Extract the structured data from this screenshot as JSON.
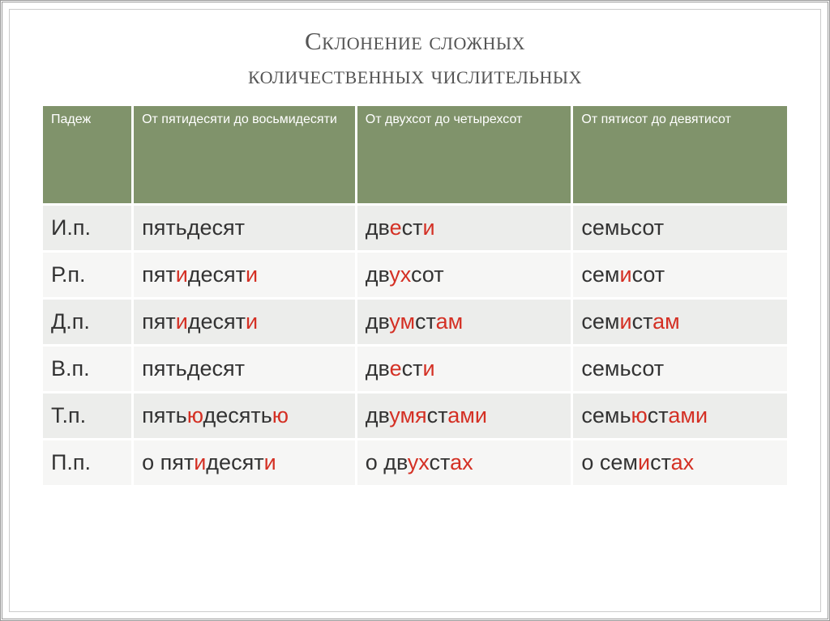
{
  "title_line1": "Склонение сложных",
  "title_line2": "количественных числительных",
  "headers": {
    "case": "Падеж",
    "col1": "От пятидесяти до восьмидесяти",
    "col2": "От двухсот до четырехсот",
    "col3": "От пятисот до девятисот"
  },
  "rows": [
    {
      "case": "И.п.",
      "c1": [
        {
          "t": "пятьдесят",
          "h": 0
        }
      ],
      "c2": [
        {
          "t": "дв",
          "h": 0
        },
        {
          "t": "е",
          "h": 1
        },
        {
          "t": "ст",
          "h": 0
        },
        {
          "t": "и",
          "h": 1
        }
      ],
      "c3": [
        {
          "t": "семьсот",
          "h": 0
        }
      ]
    },
    {
      "case": "Р.п.",
      "c1": [
        {
          "t": "пят",
          "h": 0
        },
        {
          "t": "и",
          "h": 1
        },
        {
          "t": "десят",
          "h": 0
        },
        {
          "t": "и",
          "h": 1
        }
      ],
      "c2": [
        {
          "t": "дв",
          "h": 0
        },
        {
          "t": "ух",
          "h": 1
        },
        {
          "t": "сот",
          "h": 0
        }
      ],
      "c3": [
        {
          "t": "сем",
          "h": 0
        },
        {
          "t": "и",
          "h": 1
        },
        {
          "t": "сот",
          "h": 0
        }
      ]
    },
    {
      "case": "Д.п.",
      "c1": [
        {
          "t": "пят",
          "h": 0
        },
        {
          "t": "и",
          "h": 1
        },
        {
          "t": "десят",
          "h": 0
        },
        {
          "t": "и",
          "h": 1
        }
      ],
      "c2": [
        {
          "t": "дв",
          "h": 0
        },
        {
          "t": "ум",
          "h": 1
        },
        {
          "t": "ст",
          "h": 0
        },
        {
          "t": "ам",
          "h": 1
        }
      ],
      "c3": [
        {
          "t": "сем",
          "h": 0
        },
        {
          "t": "и",
          "h": 1
        },
        {
          "t": "ст",
          "h": 0
        },
        {
          "t": "ам",
          "h": 1
        }
      ]
    },
    {
      "case": "В.п.",
      "c1": [
        {
          "t": "пятьдесят",
          "h": 0
        }
      ],
      "c2": [
        {
          "t": "дв",
          "h": 0
        },
        {
          "t": "е",
          "h": 1
        },
        {
          "t": "ст",
          "h": 0
        },
        {
          "t": "и",
          "h": 1
        }
      ],
      "c3": [
        {
          "t": "семьсот",
          "h": 0
        }
      ]
    },
    {
      "case": "Т.п.",
      "c1": [
        {
          "t": "пять",
          "h": 0
        },
        {
          "t": "ю",
          "h": 1
        },
        {
          "t": "десять",
          "h": 0
        },
        {
          "t": "ю",
          "h": 1
        }
      ],
      "c2": [
        {
          "t": "дв",
          "h": 0
        },
        {
          "t": "умя",
          "h": 1
        },
        {
          "t": "ст",
          "h": 0
        },
        {
          "t": "ами",
          "h": 1
        }
      ],
      "c3": [
        {
          "t": "семь",
          "h": 0
        },
        {
          "t": "ю",
          "h": 1
        },
        {
          "t": "ст",
          "h": 0
        },
        {
          "t": "ами",
          "h": 1
        }
      ]
    },
    {
      "case": "П.п.",
      "c1": [
        {
          "t": "о пят",
          "h": 0
        },
        {
          "t": "и",
          "h": 1
        },
        {
          "t": "десят",
          "h": 0
        },
        {
          "t": "и",
          "h": 1
        }
      ],
      "c2": [
        {
          "t": "о дв",
          "h": 0
        },
        {
          "t": "ух",
          "h": 1
        },
        {
          "t": "ст",
          "h": 0
        },
        {
          "t": "ах",
          "h": 1
        }
      ],
      "c3": [
        {
          "t": "о сем",
          "h": 0
        },
        {
          "t": "и",
          "h": 1
        },
        {
          "t": "ст",
          "h": 0
        },
        {
          "t": "ах",
          "h": 1
        }
      ]
    }
  ],
  "colors": {
    "header_bg": "#80936b",
    "header_text": "#ffffff",
    "row_odd": "#ecedeb",
    "row_even": "#f6f6f5",
    "highlight": "#d43024",
    "text": "#333333",
    "title": "#555555"
  }
}
